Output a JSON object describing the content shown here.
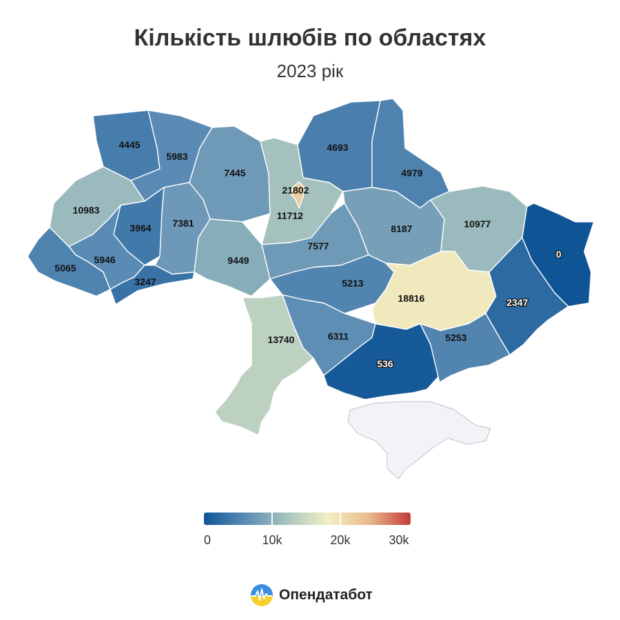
{
  "title": "Кількість шлюбів по областях",
  "subtitle": "2023 рік",
  "legend": {
    "colors": [
      "#0f5596",
      "#5b8bb4",
      "#a8c4bf",
      "#f2f0c6",
      "#e9b98b",
      "#c23b3b"
    ],
    "min": 0,
    "max": 30000,
    "ticks": [
      "0",
      "10k",
      "20k",
      "30k"
    ]
  },
  "brand": {
    "name": "Опендатабот",
    "logo_icon": "opendatabot-logo-icon"
  },
  "chart_data": {
    "type": "choropleth",
    "title": "Кількість шлюбів по областях",
    "subtitle": "2023 рік",
    "color_range": [
      0,
      30000
    ],
    "regions": [
      {
        "id": "volyn",
        "value": 4445
      },
      {
        "id": "rivne",
        "value": 5983
      },
      {
        "id": "zhytomyr",
        "value": 7445
      },
      {
        "id": "kyiv-oblast",
        "value": 11712
      },
      {
        "id": "kyiv-city",
        "value": 21802
      },
      {
        "id": "chernihiv",
        "value": 4693
      },
      {
        "id": "sumy",
        "value": 4979
      },
      {
        "id": "lviv",
        "value": 10983
      },
      {
        "id": "ternopil",
        "value": 3964
      },
      {
        "id": "khmelnytskyi",
        "value": 7381
      },
      {
        "id": "vinnytsia",
        "value": 9449
      },
      {
        "id": "cherkasy",
        "value": 7577
      },
      {
        "id": "poltava",
        "value": 8187
      },
      {
        "id": "kharkiv",
        "value": 10977
      },
      {
        "id": "luhansk",
        "value": 0
      },
      {
        "id": "zakarpattia",
        "value": 5065
      },
      {
        "id": "ivano-frankivsk",
        "value": 5946
      },
      {
        "id": "chernivtsi",
        "value": 3247
      },
      {
        "id": "kirovohrad",
        "value": 5213
      },
      {
        "id": "dnipropetrovsk",
        "value": 18816
      },
      {
        "id": "donetsk",
        "value": 2347
      },
      {
        "id": "odesa",
        "value": 13740
      },
      {
        "id": "mykolaiv",
        "value": 6311
      },
      {
        "id": "kherson",
        "value": 536
      },
      {
        "id": "zaporizhzhia",
        "value": 5253
      }
    ]
  }
}
